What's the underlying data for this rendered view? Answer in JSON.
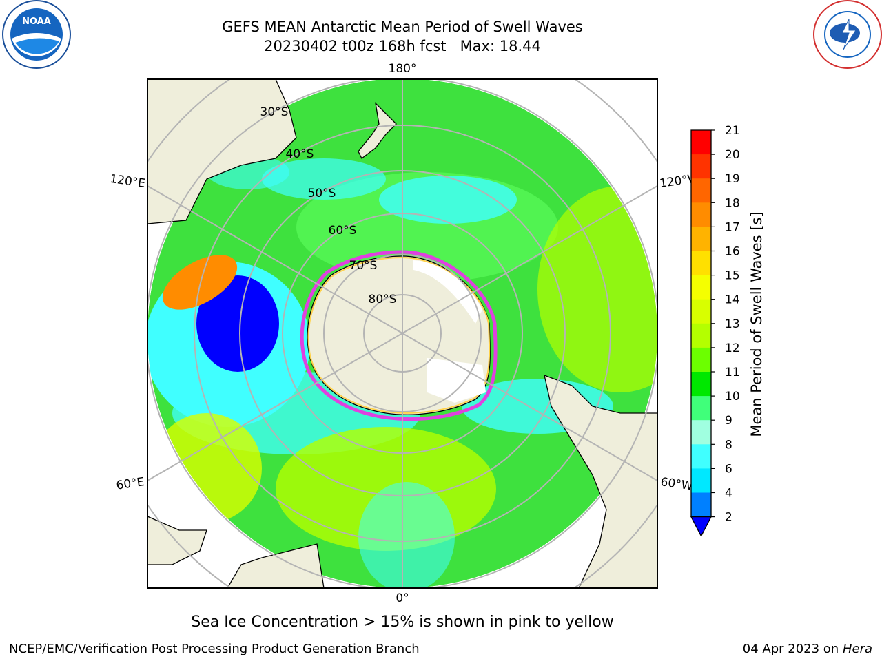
{
  "title": {
    "line1": "GEFS MEAN Antarctic Mean Period of Swell Waves",
    "line2": "20230402 t00z 168h fcst   Max: 18.44"
  },
  "logos": {
    "left": {
      "name": "noara-logo",
      "text": "NOAA"
    },
    "right": {
      "name": "nws-logo",
      "text": "NATIONAL WEATHER SERVICE"
    }
  },
  "map": {
    "projection": "south-polar-stereographic",
    "longitude_labels": {
      "top": "180°",
      "bottom": "0°",
      "left_upper": "120°E",
      "left_lower": "60°E",
      "right_upper": "120°W",
      "right_lower": "60°W"
    },
    "latitude_labels": [
      "30°S",
      "40°S",
      "50°S",
      "60°S",
      "70°S",
      "80°S"
    ],
    "colors": {
      "land": "#efeedb",
      "ice_edge": "#e040e0",
      "ice_inner": "#ffd24a",
      "grid": "#b4b4b4"
    }
  },
  "colorbar": {
    "label": "Mean Period of Swell Waves [s]",
    "ticks": [
      "21",
      "20",
      "19",
      "18",
      "17",
      "16",
      "15",
      "14",
      "13",
      "12",
      "11",
      "10",
      "9",
      "8",
      "6",
      "4",
      "2"
    ],
    "levels": [
      {
        "range": "20-21",
        "color": "#ff0000"
      },
      {
        "range": "19-20",
        "color": "#ff3300"
      },
      {
        "range": "18-19",
        "color": "#ff6600"
      },
      {
        "range": "17-18",
        "color": "#ff8c00"
      },
      {
        "range": "16-17",
        "color": "#ffb300"
      },
      {
        "range": "15-16",
        "color": "#ffe000"
      },
      {
        "range": "14-15",
        "color": "#f5ff00"
      },
      {
        "range": "13-14",
        "color": "#d8ff00"
      },
      {
        "range": "12-13",
        "color": "#b4ff00"
      },
      {
        "range": "11-12",
        "color": "#6cff00"
      },
      {
        "range": "10-11",
        "color": "#00e800"
      },
      {
        "range": "9-10",
        "color": "#40ff7a"
      },
      {
        "range": "8-9",
        "color": "#a0ffe0"
      },
      {
        "range": "6-8",
        "color": "#40ffff"
      },
      {
        "range": "4-6",
        "color": "#00e8ff"
      },
      {
        "range": "2-4",
        "color": "#0080ff"
      },
      {
        "range": "<2",
        "color": "#0000ff"
      }
    ]
  },
  "caption": "Sea Ice Concentration > 15% is shown in pink to yellow",
  "footer": {
    "credit": "NCEP/EMC/Verification Post Processing Product Generation Branch",
    "date": "04 Apr 2023 on ",
    "host": "Hera"
  }
}
